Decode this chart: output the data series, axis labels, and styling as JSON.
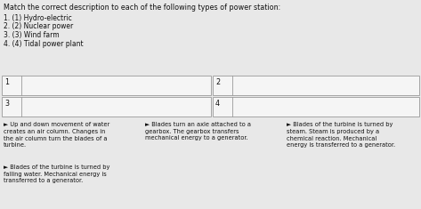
{
  "title": "Match the correct description to each of the following types of power station:",
  "numbered_list": [
    "1. (1) Hydro-electric",
    "2. (2) Nuclear power",
    "3. (3) Wind farm",
    "4. (4) Tidal power plant"
  ],
  "bg_color": "#e8e8e8",
  "box_fill": "#e8e8e8",
  "box_border": "#999999",
  "inner_fill": "#f5f5f5",
  "text_color": "#111111",
  "font_size_title": 5.8,
  "font_size_list": 5.5,
  "font_size_box_label": 5.8,
  "font_size_desc": 4.8,
  "desc1": "► Up and down movement of water\ncreates an air column. Changes in\nthe air column turn the blades of a\nturbine.",
  "desc2": "► Blades turn an axle attached to a\ngearbox. The gearbox transfers\nmechanical energy to a generator.",
  "desc3": "► Blades of the turbine is turned by\nsteam. Steam is produced by a\nchemical reaction. Mechanical\nenergy is transferred to a generator.",
  "desc4": "► Blades of the turbine is turned by\nfalling water. Mechanical energy is\ntransferred to a generator."
}
